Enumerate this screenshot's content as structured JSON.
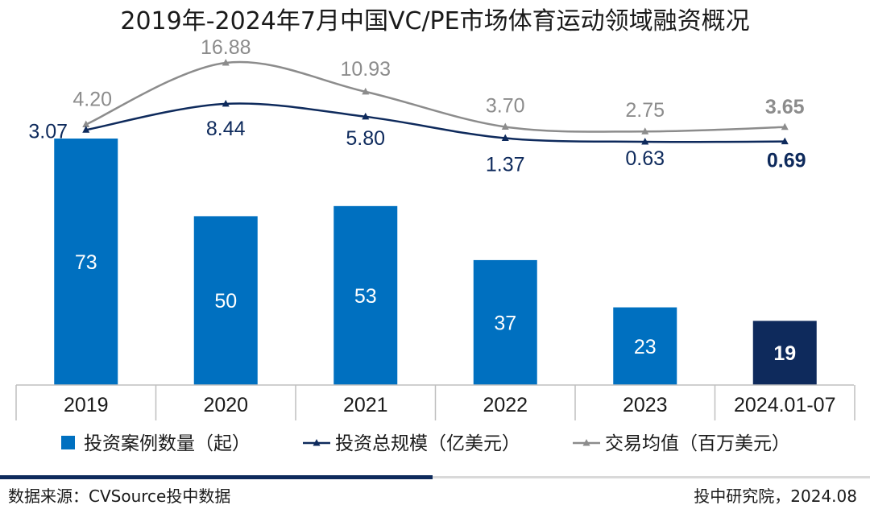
{
  "chart_data": {
    "type": "bar+line",
    "title": "2019年-2024年7月中国VC/PE市场体育运动领域融资概况",
    "categories": [
      "2019",
      "2020",
      "2021",
      "2022",
      "2023",
      "2024.01-07"
    ],
    "series": [
      {
        "name": "投资案例数量（起）",
        "type": "bar",
        "values": [
          73,
          50,
          53,
          37,
          23,
          19
        ],
        "color": "#0070c0",
        "highlight_color": "#0e2a5c"
      },
      {
        "name": "投资总规模（亿美元）",
        "type": "line",
        "values": [
          3.07,
          8.44,
          5.8,
          1.37,
          0.63,
          0.69
        ],
        "labels": [
          "3.07",
          "8.44",
          "5.80",
          "1.37",
          "0.63",
          "0.69"
        ],
        "color": "#0e2a5c"
      },
      {
        "name": "交易均值（百万美元）",
        "type": "line",
        "values": [
          4.2,
          16.88,
          10.93,
          3.7,
          2.75,
          3.65
        ],
        "labels": [
          "4.20",
          "16.88",
          "10.93",
          "3.70",
          "2.75",
          "3.65"
        ],
        "color": "#8c8c8c"
      }
    ],
    "highlight_category": "2024.01-07",
    "legend_position": "bottom"
  },
  "footer": {
    "source": "数据来源：CVSource投中数据",
    "credit": "投中研究院，2024.08"
  }
}
